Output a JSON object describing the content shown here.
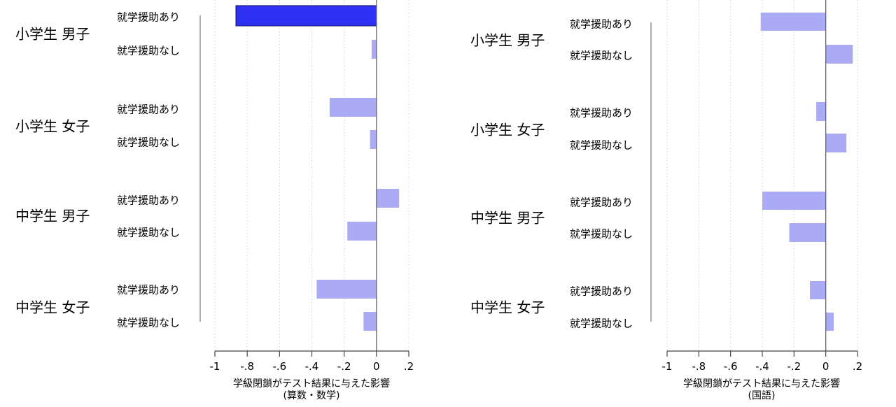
{
  "chart_data": [
    {
      "type": "bar",
      "orientation": "horizontal",
      "xlabel": "学級閉鎖がテスト結果に与えた影響",
      "xlabel_sub": "(算数・数学)",
      "xlim": [
        -1,
        0.2
      ],
      "xticks": [
        -1,
        -0.8,
        -0.6,
        -0.4,
        -0.2,
        0,
        0.2
      ],
      "xtick_labels": [
        "-1",
        "-.8",
        "-.6",
        "-.4",
        "-.2",
        "0",
        ".2"
      ],
      "grid": "vertical dotted",
      "groups": [
        {
          "label": "小学生 男子",
          "bars": [
            {
              "label": "就学援助あり",
              "value": -0.87,
              "highlight": true
            },
            {
              "label": "就学援助なし",
              "value": -0.03,
              "highlight": false
            }
          ]
        },
        {
          "label": "小学生 女子",
          "bars": [
            {
              "label": "就学援助あり",
              "value": -0.29,
              "highlight": false
            },
            {
              "label": "就学援助なし",
              "value": -0.04,
              "highlight": false
            }
          ]
        },
        {
          "label": "中学生 男子",
          "bars": [
            {
              "label": "就学援助あり",
              "value": 0.14,
              "highlight": false
            },
            {
              "label": "就学援助なし",
              "value": -0.18,
              "highlight": false
            }
          ]
        },
        {
          "label": "中学生 女子",
          "bars": [
            {
              "label": "就学援助あり",
              "value": -0.37,
              "highlight": false
            },
            {
              "label": "就学援助なし",
              "value": -0.08,
              "highlight": false
            }
          ]
        }
      ]
    },
    {
      "type": "bar",
      "orientation": "horizontal",
      "xlabel": "学級閉鎖がテスト結果に与えた影響",
      "xlabel_sub": "(国語)",
      "xlim": [
        -1,
        0.2
      ],
      "xticks": [
        -1,
        -0.8,
        -0.6,
        -0.4,
        -0.2,
        0,
        0.2
      ],
      "xtick_labels": [
        "-1",
        "-.8",
        "-.6",
        "-.4",
        "-.2",
        "0",
        ".2"
      ],
      "grid": "vertical dotted",
      "groups": [
        {
          "label": "小学生 男子",
          "bars": [
            {
              "label": "就学援助あり",
              "value": -0.41,
              "highlight": false
            },
            {
              "label": "就学援助なし",
              "value": 0.17,
              "highlight": false
            }
          ]
        },
        {
          "label": "小学生 女子",
          "bars": [
            {
              "label": "就学援助あり",
              "value": -0.06,
              "highlight": false
            },
            {
              "label": "就学援助なし",
              "value": 0.13,
              "highlight": false
            }
          ]
        },
        {
          "label": "中学生 男子",
          "bars": [
            {
              "label": "就学援助あり",
              "value": -0.4,
              "highlight": false
            },
            {
              "label": "就学援助なし",
              "value": -0.23,
              "highlight": false
            }
          ]
        },
        {
          "label": "中学生 女子",
          "bars": [
            {
              "label": "就学援助あり",
              "value": -0.1,
              "highlight": false
            },
            {
              "label": "就学援助なし",
              "value": 0.05,
              "highlight": false
            }
          ]
        }
      ]
    }
  ],
  "colors": {
    "bar": "#aaaaf5",
    "bar_highlight": "#2e31f4",
    "bar_highlight_stroke": "#10105a",
    "axis": "#555555",
    "grid": "#cfcfcf"
  }
}
